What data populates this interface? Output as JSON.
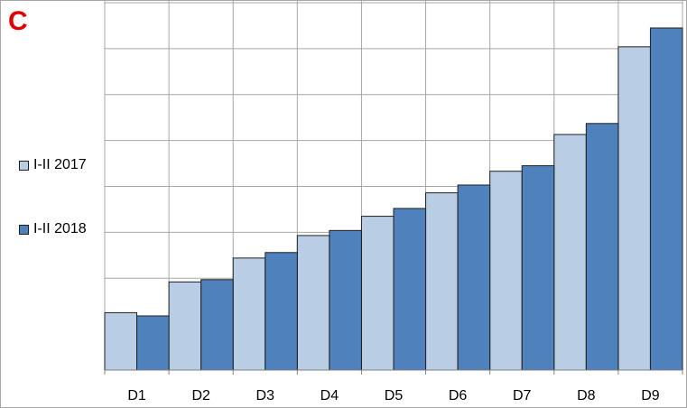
{
  "panel": {
    "letter": "C",
    "letter_color": "#e00000"
  },
  "chart_data": {
    "type": "bar",
    "categories": [
      "D1",
      "D2",
      "D3",
      "D4",
      "D5",
      "D6",
      "D7",
      "D8",
      "D9"
    ],
    "series": [
      {
        "name": "I-II 2017",
        "color": "#b9cde5",
        "values": [
          1.25,
          1.92,
          2.44,
          2.93,
          3.35,
          3.86,
          4.33,
          5.13,
          7.04
        ]
      },
      {
        "name": "I-II 2018",
        "color": "#4f81bd",
        "values": [
          1.18,
          1.97,
          2.56,
          3.04,
          3.52,
          4.03,
          4.45,
          5.37,
          7.45
        ]
      }
    ],
    "ylim": [
      0,
      8
    ],
    "y_tick_labels_shown": false,
    "grid": true,
    "legend_position": "left"
  }
}
